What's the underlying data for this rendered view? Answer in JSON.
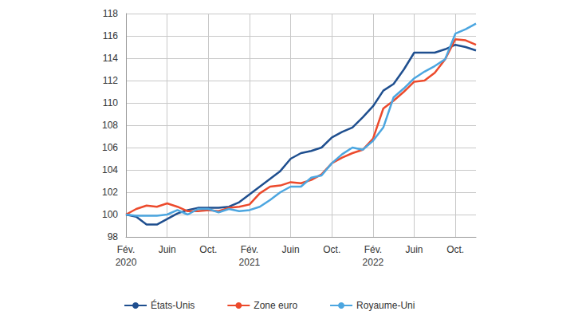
{
  "chart_data": {
    "type": "line",
    "categories": [
      "Fév.\n2020",
      null,
      null,
      null,
      "Juin",
      null,
      null,
      null,
      "Oct.",
      null,
      null,
      null,
      "Fév.\n2021",
      null,
      null,
      null,
      "Juin",
      null,
      null,
      null,
      "Oct.",
      null,
      null,
      null,
      "Fév.\n2022",
      null,
      null,
      null,
      "Juin",
      null,
      null,
      null,
      "Oct.",
      null,
      null
    ],
    "series": [
      {
        "name": "États-Unis",
        "color": "#1f4f8f",
        "values": [
          100,
          99.8,
          99.1,
          99.1,
          99.6,
          100.1,
          100.4,
          100.6,
          100.6,
          100.6,
          100.7,
          101.1,
          101.8,
          102.5,
          103.2,
          103.9,
          105.0,
          105.5,
          105.7,
          106.0,
          106.9,
          107.4,
          107.8,
          108.7,
          109.7,
          111.1,
          111.7,
          113.0,
          114.5,
          114.5,
          114.5,
          114.8,
          115.2,
          115.0,
          114.7
        ]
      },
      {
        "name": "Zone euro",
        "color": "#ec4a2c",
        "values": [
          100,
          100.5,
          100.8,
          100.7,
          101.0,
          100.7,
          100.3,
          100.3,
          100.4,
          100.3,
          100.6,
          100.7,
          100.9,
          101.9,
          102.5,
          102.6,
          102.9,
          102.8,
          103.1,
          103.6,
          104.6,
          105.1,
          105.5,
          105.8,
          106.8,
          109.5,
          110.2,
          111.0,
          111.9,
          112.0,
          112.7,
          113.9,
          115.7,
          115.6,
          115.2
        ]
      },
      {
        "name": "Royaume-Uni",
        "color": "#4ca6e0",
        "values": [
          100,
          99.9,
          99.9,
          99.9,
          100.0,
          100.4,
          100.0,
          100.5,
          100.5,
          100.2,
          100.5,
          100.3,
          100.4,
          100.7,
          101.3,
          102.0,
          102.5,
          102.5,
          103.3,
          103.5,
          104.6,
          105.4,
          106.0,
          105.8,
          106.6,
          107.8,
          110.5,
          111.3,
          112.2,
          112.8,
          113.3,
          113.9,
          116.2,
          116.6,
          117.1
        ]
      }
    ],
    "ylim": [
      98,
      118
    ],
    "yticks": [
      98,
      100,
      102,
      104,
      106,
      108,
      110,
      112,
      114,
      116,
      118
    ],
    "grid": true,
    "legend": "bottom-left"
  }
}
